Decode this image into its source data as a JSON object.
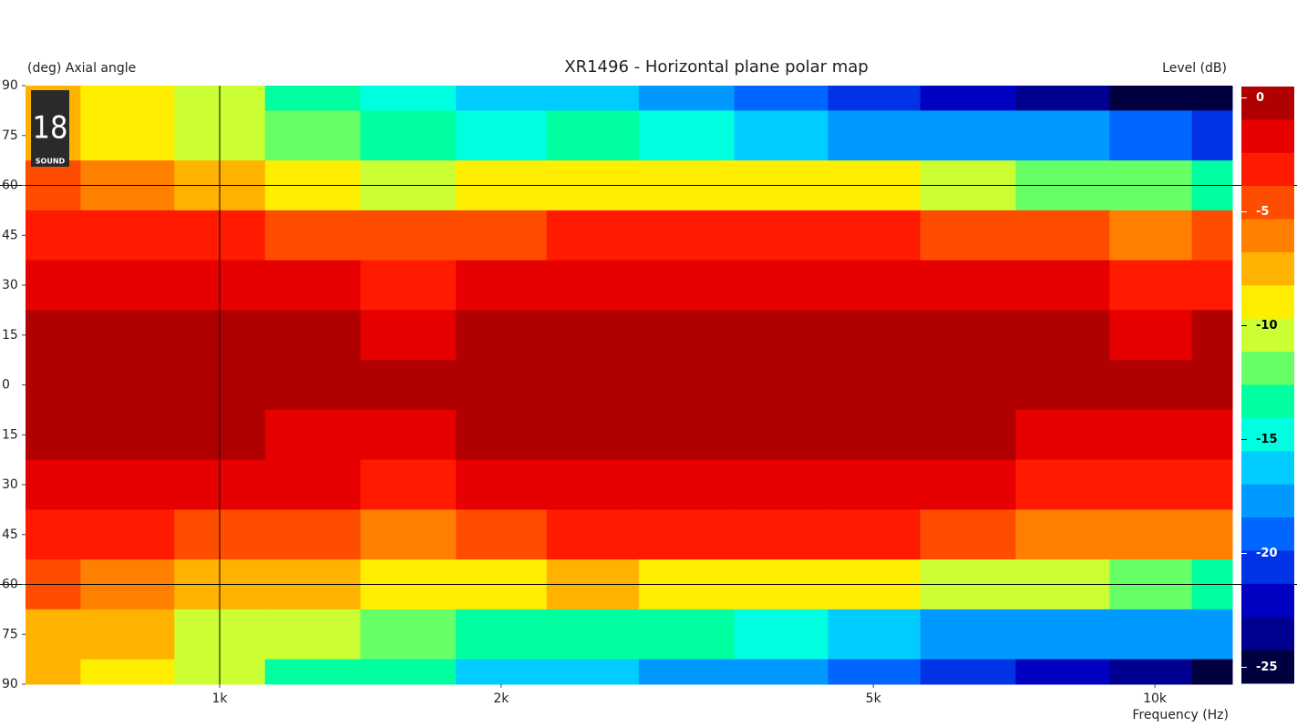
{
  "chart_data": {
    "type": "heatmap",
    "title": "XR1496 - Horizontal plane polar map",
    "ylabel": "(deg)  Axial angle",
    "zlabel": "Level  (dB)",
    "xlabel": "Frequency  (Hz)",
    "logo": "18",
    "logo_subtitle": "SOUND",
    "xscale": "log",
    "x": [
      630,
      800,
      1000,
      1250,
      1600,
      2000,
      2500,
      3150,
      4000,
      5000,
      6300,
      8000,
      10000,
      12000
    ],
    "y": [
      90,
      75,
      60,
      45,
      30,
      15,
      0,
      -15,
      -30,
      -45,
      -60,
      -75,
      -90
    ],
    "z": [
      [
        -8,
        -9,
        -11,
        -14,
        -15,
        -16,
        -16,
        -17,
        -19,
        -21,
        -22,
        -24,
        -26,
        -26
      ],
      [
        -7,
        -9,
        -10,
        -12,
        -14,
        -15,
        -14,
        -15,
        -16,
        -17,
        -18,
        -18,
        -19,
        -20
      ],
      [
        -4,
        -6,
        -7,
        -9,
        -10,
        -9,
        -8.5,
        -9,
        -9,
        -9,
        -10,
        -12,
        -12,
        -13
      ],
      [
        -3,
        -3,
        -3.5,
        -4,
        -5,
        -4,
        -3,
        -3.5,
        -3.5,
        -3.5,
        -4,
        -5,
        -6,
        -5
      ],
      [
        -2,
        -2,
        -2,
        -2,
        -2.5,
        -2,
        -1,
        -1,
        -1.5,
        -1.5,
        -2,
        -2,
        -2.5,
        -2.5
      ],
      [
        -0.5,
        -0.5,
        -0.5,
        -0.8,
        -1,
        -0.8,
        -0.3,
        -0.3,
        -0.5,
        -0.5,
        -0.6,
        -0.8,
        -1,
        -0.8
      ],
      [
        0,
        0,
        0,
        0,
        0,
        0,
        0,
        0,
        0,
        0,
        0,
        0,
        0,
        0
      ],
      [
        -0.8,
        -0.8,
        -0.8,
        -1.2,
        -1.2,
        -0.8,
        -0.3,
        -0.3,
        -0.6,
        -0.6,
        -0.8,
        -1.2,
        -1.2,
        -1.2
      ],
      [
        -2,
        -2,
        -2,
        -2,
        -2.5,
        -2,
        -1,
        -1.5,
        -2,
        -2,
        -2,
        -2.5,
        -2.5,
        -2.5
      ],
      [
        -3,
        -3.5,
        -4,
        -4.5,
        -5.5,
        -4,
        -3.5,
        -3.5,
        -3.5,
        -3.5,
        -4.5,
        -5.5,
        -6,
        -6
      ],
      [
        -5,
        -6,
        -7,
        -8,
        -9,
        -9,
        -8,
        -8.5,
        -9,
        -9,
        -10,
        -11,
        -12,
        -13
      ],
      [
        -7,
        -8,
        -10,
        -11,
        -12,
        -14,
        -14,
        -14,
        -15,
        -16,
        -17,
        -17,
        -18,
        -18
      ],
      [
        -8,
        -9,
        -11,
        -13,
        -14,
        -16,
        -16,
        -17,
        -18,
        -19,
        -21,
        -22,
        -24,
        -25
      ]
    ],
    "xlim": [
      620,
      12100
    ],
    "ylim": [
      -90,
      90
    ],
    "xticks": [
      {
        "value": 1000,
        "label": "1k"
      },
      {
        "value": 2000,
        "label": "2k"
      },
      {
        "value": 5000,
        "label": "5k"
      },
      {
        "value": 10000,
        "label": "10k"
      }
    ],
    "yticks": [
      90,
      75,
      60,
      45,
      30,
      15,
      0,
      {
        "value": -15,
        "label": "15"
      },
      {
        "value": -30,
        "label": "30"
      },
      {
        "value": -45,
        "label": "45"
      },
      {
        "value": -60,
        "label": "60"
      },
      {
        "value": -75,
        "label": "75"
      },
      {
        "value": -90,
        "label": "90"
      }
    ],
    "xgrid": [
      1000
    ],
    "ygrid": [
      60,
      -60
    ],
    "zlim": [
      0.5,
      -25.7
    ],
    "zticks": [
      0,
      -5,
      -10,
      -15,
      -20,
      -25
    ],
    "colors": [
      "#b00000",
      "#e60000",
      "#ff1a00",
      "#ff4d00",
      "#ff8000",
      "#ffb300",
      "#ffee00",
      "#ccff33",
      "#66ff66",
      "#00ffa0",
      "#00ffe0",
      "#00ccff",
      "#0099ff",
      "#0066ff",
      "#0033e6",
      "#0000c0",
      "#000090",
      "#000040"
    ]
  }
}
